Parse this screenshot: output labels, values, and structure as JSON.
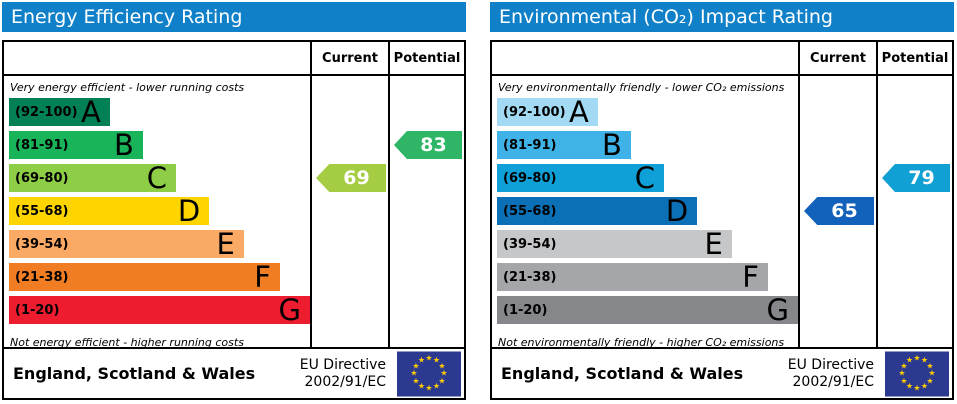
{
  "theme": {
    "header_bg": "#1080c8",
    "header_text": "#ffffff",
    "border": "#000000",
    "eu_flag_bg": "#2b3990",
    "eu_star_color": "#ffcc00"
  },
  "panels": [
    {
      "title": "Energy Efficiency Rating",
      "columns": {
        "current": "Current",
        "potential": "Potential"
      },
      "top_note": "Very energy efficient - lower running costs",
      "bottom_note": "Not energy efficient - higher running costs",
      "bands": [
        {
          "range": "(92-100)",
          "letter": "A",
          "color": "#008054",
          "width_pct": 33.5
        },
        {
          "range": "(81-91)",
          "letter": "B",
          "color": "#19b459",
          "width_pct": 44.5
        },
        {
          "range": "(69-80)",
          "letter": "C",
          "color": "#8dce46",
          "width_pct": 55.5
        },
        {
          "range": "(55-68)",
          "letter": "D",
          "color": "#ffd500",
          "width_pct": 66.5
        },
        {
          "range": "(39-54)",
          "letter": "E",
          "color": "#fbaa65",
          "width_pct": 78
        },
        {
          "range": "(21-38)",
          "letter": "F",
          "color": "#f07d23",
          "width_pct": 90
        },
        {
          "range": "(1-20)",
          "letter": "G",
          "color": "#ed1c2e",
          "width_pct": 100
        }
      ],
      "current": {
        "value": "69",
        "band_index": 2,
        "color": "#a5cd44"
      },
      "potential": {
        "value": "83",
        "band_index": 1,
        "color": "#2eb566"
      },
      "footer": {
        "region": "England, Scotland & Wales",
        "directive_line1": "EU Directive",
        "directive_line2": "2002/91/EC"
      }
    },
    {
      "title": "Environmental (CO₂) Impact Rating",
      "columns": {
        "current": "Current",
        "potential": "Potential"
      },
      "top_note": "Very environmentally friendly - lower CO₂ emissions",
      "bottom_note": "Not environmentally friendly - higher CO₂ emissions",
      "bands": [
        {
          "range": "(92-100)",
          "letter": "A",
          "color": "#a2daf4",
          "width_pct": 33.5
        },
        {
          "range": "(81-91)",
          "letter": "B",
          "color": "#3fb3e7",
          "width_pct": 44.5
        },
        {
          "range": "(69-80)",
          "letter": "C",
          "color": "#0fa0d8",
          "width_pct": 55.5
        },
        {
          "range": "(55-68)",
          "letter": "D",
          "color": "#0c70b6",
          "width_pct": 66.5
        },
        {
          "range": "(39-54)",
          "letter": "E",
          "color": "#c6c7c9",
          "width_pct": 78
        },
        {
          "range": "(21-38)",
          "letter": "F",
          "color": "#a4a6a9",
          "width_pct": 90
        },
        {
          "range": "(1-20)",
          "letter": "G",
          "color": "#85878a",
          "width_pct": 100
        }
      ],
      "current": {
        "value": "65",
        "band_index": 3,
        "color": "#1261ba"
      },
      "potential": {
        "value": "79",
        "band_index": 2,
        "color": "#10a0d4"
      },
      "footer": {
        "region": "England, Scotland & Wales",
        "directive_line1": "EU Directive",
        "directive_line2": "2002/91/EC"
      }
    }
  ],
  "chart_data": [
    {
      "type": "bar",
      "title": "Energy Efficiency Rating",
      "categories": [
        "A (92-100)",
        "B (81-91)",
        "C (69-80)",
        "D (55-68)",
        "E (39-54)",
        "F (21-38)",
        "G (1-20)"
      ],
      "series": [
        {
          "name": "Current",
          "values": [
            69
          ],
          "band": "C"
        },
        {
          "name": "Potential",
          "values": [
            83
          ],
          "band": "B"
        }
      ],
      "scale_range": [
        1,
        100
      ],
      "top_annotation": "Very energy efficient - lower running costs",
      "bottom_annotation": "Not energy efficient - higher running costs",
      "footer": "England, Scotland & Wales — EU Directive 2002/91/EC"
    },
    {
      "type": "bar",
      "title": "Environmental (CO₂) Impact Rating",
      "categories": [
        "A (92-100)",
        "B (81-91)",
        "C (69-80)",
        "D (55-68)",
        "E (39-54)",
        "F (21-38)",
        "G (1-20)"
      ],
      "series": [
        {
          "name": "Current",
          "values": [
            65
          ],
          "band": "D"
        },
        {
          "name": "Potential",
          "values": [
            79
          ],
          "band": "C"
        }
      ],
      "scale_range": [
        1,
        100
      ],
      "top_annotation": "Very environmentally friendly - lower CO₂ emissions",
      "bottom_annotation": "Not environmentally friendly - higher CO₂ emissions",
      "footer": "England, Scotland & Wales — EU Directive 2002/91/EC"
    }
  ]
}
